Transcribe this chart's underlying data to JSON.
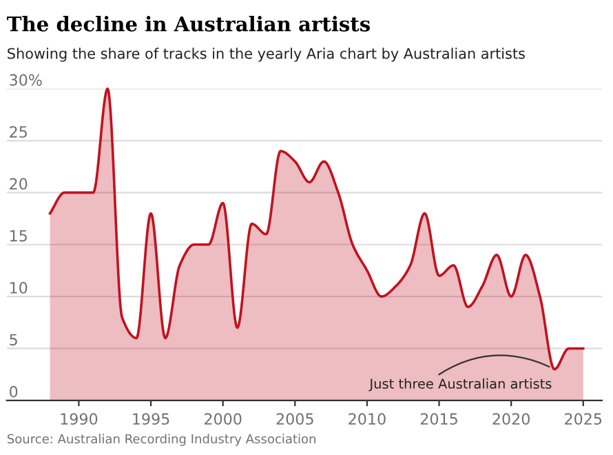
{
  "chart_data": {
    "type": "area",
    "title": "The decline in Australian artists",
    "subtitle": "Showing the share of tracks in the yearly Aria chart by Australian artists",
    "x": [
      1988,
      1989,
      1990,
      1991,
      1992,
      1993,
      1994,
      1995,
      1996,
      1997,
      1998,
      1999,
      2000,
      2001,
      2002,
      2003,
      2004,
      2005,
      2006,
      2007,
      2008,
      2009,
      2010,
      2011,
      2012,
      2013,
      2014,
      2015,
      2016,
      2017,
      2018,
      2019,
      2020,
      2021,
      2022,
      2023,
      2024,
      2025
    ],
    "series": [
      {
        "color": "#c1121f",
        "values": [
          18,
          20,
          20,
          20,
          30,
          8,
          6,
          18,
          6,
          13,
          15,
          15,
          19,
          7,
          17,
          16,
          24,
          23,
          21,
          23,
          20,
          15,
          12.5,
          10,
          11,
          13,
          18,
          12,
          13,
          9,
          11,
          14,
          10,
          14,
          10,
          3,
          5,
          5
        ]
      }
    ],
    "xlim": [
      1985,
      2026.3
    ],
    "xticks": [
      1990,
      1995,
      2000,
      2005,
      2010,
      2015,
      2020,
      2025
    ],
    "ylim": [
      0,
      30
    ],
    "yticks": [
      0,
      5,
      10,
      15,
      20,
      25,
      {
        "value": 30,
        "label": "30%"
      }
    ],
    "grid": "y",
    "annotations": [
      {
        "text": "Just three Australian artists",
        "x": 2023,
        "y": 3
      },
      "Source: Australian Recording Industry Association"
    ]
  }
}
